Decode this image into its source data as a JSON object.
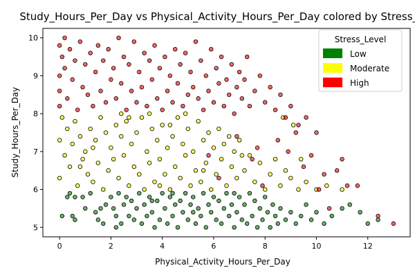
{
  "chart_data": {
    "type": "scatter",
    "title": "Study_Hours_Per_Day vs Physical_Activity_Hours_Per_Day colored by Stress_Level",
    "xlabel": "Physical_Activity_Hours_Per_Day",
    "ylabel": "Study_Hours_Per_Day",
    "xlim": [
      -0.65,
      13.65
    ],
    "ylim": [
      4.75,
      10.25
    ],
    "xticks": [
      0,
      2,
      4,
      6,
      8,
      10,
      12
    ],
    "yticks": [
      5,
      6,
      7,
      8,
      9,
      10
    ],
    "grid": false,
    "legend": {
      "title": "Stress_Level",
      "placement": "top-right",
      "entries": [
        {
          "label": "Low",
          "color": "#008000"
        },
        {
          "label": "Moderate",
          "color": "#ffff00"
        },
        {
          "label": "High",
          "color": "#ff0000"
        }
      ]
    },
    "series": [
      {
        "name": "Low",
        "color": "#008000",
        "points": [
          [
            0.1,
            5.3
          ],
          [
            0.3,
            5.8
          ],
          [
            0.4,
            5.9
          ],
          [
            0.5,
            5.3
          ],
          [
            0.6,
            5.8
          ],
          [
            0.6,
            5.2
          ],
          [
            0.9,
            5.8
          ],
          [
            1.0,
            5.5
          ],
          [
            1.2,
            5.9
          ],
          [
            1.4,
            5.4
          ],
          [
            1.6,
            5.5
          ],
          [
            1.7,
            5.1
          ],
          [
            1.8,
            5.6
          ],
          [
            2.0,
            5.8
          ],
          [
            2.1,
            5.5
          ],
          [
            2.2,
            5.3
          ],
          [
            2.3,
            5.9
          ],
          [
            2.4,
            5.1
          ],
          [
            2.5,
            5.6
          ],
          [
            2.6,
            5.8
          ],
          [
            2.7,
            5.3
          ],
          [
            2.8,
            5.7
          ],
          [
            2.9,
            5.2
          ],
          [
            3.0,
            5.5
          ],
          [
            3.1,
            5.9
          ],
          [
            3.2,
            5.1
          ],
          [
            3.3,
            5.6
          ],
          [
            3.4,
            5.3
          ],
          [
            3.5,
            5.8
          ],
          [
            3.6,
            5.4
          ],
          [
            3.7,
            5.0
          ],
          [
            3.8,
            5.7
          ],
          [
            3.9,
            5.2
          ],
          [
            4.0,
            5.9
          ],
          [
            4.1,
            5.5
          ],
          [
            4.2,
            5.1
          ],
          [
            4.3,
            5.8
          ],
          [
            4.4,
            5.3
          ],
          [
            4.5,
            5.6
          ],
          [
            4.6,
            5.0
          ],
          [
            4.7,
            5.7
          ],
          [
            4.8,
            5.4
          ],
          [
            4.9,
            5.9
          ],
          [
            5.0,
            5.2
          ],
          [
            5.1,
            5.6
          ],
          [
            5.2,
            5.8
          ],
          [
            5.3,
            5.1
          ],
          [
            5.4,
            5.5
          ],
          [
            5.5,
            5.3
          ],
          [
            5.6,
            5.9
          ],
          [
            5.7,
            5.0
          ],
          [
            5.8,
            5.6
          ],
          [
            5.9,
            5.4
          ],
          [
            6.0,
            5.8
          ],
          [
            6.1,
            5.2
          ],
          [
            6.2,
            5.7
          ],
          [
            6.3,
            5.1
          ],
          [
            6.4,
            5.5
          ],
          [
            6.5,
            5.9
          ],
          [
            6.6,
            5.3
          ],
          [
            6.7,
            5.6
          ],
          [
            6.8,
            5.0
          ],
          [
            6.9,
            5.4
          ],
          [
            7.0,
            5.8
          ],
          [
            7.1,
            5.2
          ],
          [
            7.2,
            5.6
          ],
          [
            7.3,
            5.1
          ],
          [
            7.4,
            5.9
          ],
          [
            7.5,
            5.3
          ],
          [
            7.6,
            5.7
          ],
          [
            7.7,
            5.0
          ],
          [
            7.8,
            5.5
          ],
          [
            7.9,
            5.2
          ],
          [
            8.0,
            5.8
          ],
          [
            8.1,
            5.4
          ],
          [
            8.2,
            5.0
          ],
          [
            8.3,
            5.6
          ],
          [
            8.4,
            5.3
          ],
          [
            8.5,
            5.1
          ],
          [
            8.6,
            5.5
          ],
          [
            8.8,
            5.2
          ],
          [
            9.0,
            5.4
          ],
          [
            9.2,
            5.1
          ],
          [
            9.4,
            5.3
          ],
          [
            9.6,
            5.6
          ],
          [
            9.8,
            5.2
          ],
          [
            10.0,
            5.4
          ],
          [
            10.3,
            5.1
          ],
          [
            10.6,
            5.3
          ],
          [
            11.0,
            5.5
          ],
          [
            11.3,
            5.6
          ],
          [
            11.7,
            5.4
          ],
          [
            12.0,
            5.1
          ],
          [
            12.4,
            5.2
          ],
          [
            3.6,
            5.7
          ],
          [
            4.4,
            5.9
          ],
          [
            5.2,
            5.4
          ],
          [
            6.8,
            5.9
          ],
          [
            2.2,
            5.0
          ],
          [
            1.5,
            5.2
          ]
        ]
      },
      {
        "name": "Moderate",
        "color": "#ffff00",
        "points": [
          [
            0.0,
            7.3
          ],
          [
            0.0,
            6.3
          ],
          [
            0.1,
            7.9
          ],
          [
            0.2,
            6.9
          ],
          [
            0.3,
            7.6
          ],
          [
            0.4,
            6.6
          ],
          [
            0.5,
            7.2
          ],
          [
            0.6,
            7.8
          ],
          [
            0.7,
            6.1
          ],
          [
            0.8,
            7.4
          ],
          [
            0.9,
            6.8
          ],
          [
            1.0,
            7.0
          ],
          [
            1.1,
            6.4
          ],
          [
            1.2,
            7.6
          ],
          [
            1.3,
            6.2
          ],
          [
            1.4,
            7.3
          ],
          [
            1.5,
            6.7
          ],
          [
            1.6,
            7.9
          ],
          [
            1.7,
            6.0
          ],
          [
            1.8,
            7.5
          ],
          [
            1.9,
            6.5
          ],
          [
            2.0,
            7.1
          ],
          [
            2.1,
            6.8
          ],
          [
            2.2,
            7.7
          ],
          [
            2.3,
            6.3
          ],
          [
            2.4,
            7.4
          ],
          [
            2.5,
            6.9
          ],
          [
            2.6,
            7.8
          ],
          [
            2.7,
            6.1
          ],
          [
            2.8,
            7.2
          ],
          [
            2.9,
            6.6
          ],
          [
            3.0,
            7.5
          ],
          [
            3.1,
            6.4
          ],
          [
            3.2,
            7.9
          ],
          [
            3.3,
            6.0
          ],
          [
            3.4,
            7.0
          ],
          [
            3.5,
            6.7
          ],
          [
            3.6,
            7.6
          ],
          [
            3.7,
            6.2
          ],
          [
            3.8,
            7.3
          ],
          [
            3.9,
            6.8
          ],
          [
            4.0,
            7.7
          ],
          [
            4.1,
            6.4
          ],
          [
            4.2,
            7.1
          ],
          [
            4.3,
            6.0
          ],
          [
            4.4,
            7.4
          ],
          [
            4.5,
            6.6
          ],
          [
            4.6,
            7.9
          ],
          [
            4.7,
            6.3
          ],
          [
            4.8,
            7.2
          ],
          [
            4.9,
            6.9
          ],
          [
            5.0,
            7.6
          ],
          [
            5.1,
            6.1
          ],
          [
            5.2,
            7.0
          ],
          [
            5.3,
            6.5
          ],
          [
            5.4,
            7.8
          ],
          [
            5.5,
            6.2
          ],
          [
            5.6,
            7.3
          ],
          [
            5.7,
            6.7
          ],
          [
            5.8,
            7.5
          ],
          [
            5.9,
            6.0
          ],
          [
            6.0,
            7.1
          ],
          [
            6.1,
            6.4
          ],
          [
            6.2,
            7.6
          ],
          [
            6.3,
            6.8
          ],
          [
            6.4,
            7.2
          ],
          [
            6.5,
            6.1
          ],
          [
            6.6,
            7.4
          ],
          [
            6.7,
            6.6
          ],
          [
            6.8,
            7.0
          ],
          [
            6.9,
            6.3
          ],
          [
            7.0,
            7.3
          ],
          [
            7.2,
            6.5
          ],
          [
            7.4,
            6.9
          ],
          [
            7.6,
            6.2
          ],
          [
            7.8,
            6.7
          ],
          [
            8.0,
            6.0
          ],
          [
            8.2,
            6.4
          ],
          [
            8.4,
            6.8
          ],
          [
            8.6,
            6.1
          ],
          [
            8.8,
            6.5
          ],
          [
            9.0,
            6.3
          ],
          [
            9.3,
            6.0
          ],
          [
            9.6,
            6.2
          ],
          [
            10.0,
            6.0
          ],
          [
            10.4,
            6.1
          ],
          [
            11.0,
            6.0
          ],
          [
            8.7,
            7.9
          ],
          [
            9.1,
            7.7
          ],
          [
            9.4,
            6.8
          ],
          [
            2.4,
            8.0
          ],
          [
            3.5,
            8.0
          ],
          [
            4.9,
            8.0
          ],
          [
            1.3,
            7.1
          ],
          [
            0.8,
            6.6
          ],
          [
            5.6,
            6.5
          ],
          [
            7.1,
            6.9
          ],
          [
            3.9,
            6.1
          ],
          [
            2.7,
            7.9
          ],
          [
            4.3,
            7.7
          ]
        ]
      },
      {
        "name": "High",
        "color": "#ff0000",
        "points": [
          [
            0.0,
            9.8
          ],
          [
            0.0,
            9.0
          ],
          [
            0.0,
            8.6
          ],
          [
            0.0,
            8.2
          ],
          [
            0.1,
            9.5
          ],
          [
            0.2,
            10.0
          ],
          [
            0.2,
            9.2
          ],
          [
            0.3,
            8.4
          ],
          [
            0.4,
            9.7
          ],
          [
            0.5,
            8.9
          ],
          [
            0.6,
            9.4
          ],
          [
            0.7,
            8.1
          ],
          [
            0.8,
            9.9
          ],
          [
            0.9,
            8.7
          ],
          [
            1.0,
            9.3
          ],
          [
            1.1,
            8.5
          ],
          [
            1.2,
            9.6
          ],
          [
            1.3,
            8.2
          ],
          [
            1.4,
            9.1
          ],
          [
            1.5,
            9.8
          ],
          [
            1.6,
            8.6
          ],
          [
            1.7,
            9.4
          ],
          [
            1.8,
            8.3
          ],
          [
            1.9,
            9.7
          ],
          [
            2.0,
            8.9
          ],
          [
            2.1,
            9.2
          ],
          [
            2.2,
            8.4
          ],
          [
            2.3,
            10.0
          ],
          [
            2.4,
            8.8
          ],
          [
            2.5,
            9.5
          ],
          [
            2.6,
            8.1
          ],
          [
            2.7,
            9.3
          ],
          [
            2.8,
            8.6
          ],
          [
            2.9,
            9.9
          ],
          [
            3.0,
            8.3
          ],
          [
            3.1,
            9.1
          ],
          [
            3.2,
            8.7
          ],
          [
            3.3,
            9.6
          ],
          [
            3.4,
            8.2
          ],
          [
            3.5,
            9.4
          ],
          [
            3.6,
            8.9
          ],
          [
            3.7,
            9.8
          ],
          [
            3.8,
            8.4
          ],
          [
            3.9,
            9.2
          ],
          [
            4.0,
            8.1
          ],
          [
            4.1,
            9.5
          ],
          [
            4.2,
            8.6
          ],
          [
            4.3,
            9.0
          ],
          [
            4.4,
            8.3
          ],
          [
            4.5,
            9.7
          ],
          [
            4.6,
            8.8
          ],
          [
            4.7,
            9.3
          ],
          [
            4.8,
            8.2
          ],
          [
            4.9,
            9.6
          ],
          [
            5.0,
            8.5
          ],
          [
            5.1,
            9.1
          ],
          [
            5.2,
            8.7
          ],
          [
            5.3,
            9.9
          ],
          [
            5.4,
            8.4
          ],
          [
            5.5,
            9.4
          ],
          [
            5.6,
            8.1
          ],
          [
            5.7,
            9.0
          ],
          [
            5.8,
            8.6
          ],
          [
            5.9,
            9.7
          ],
          [
            6.0,
            8.3
          ],
          [
            6.1,
            9.2
          ],
          [
            6.2,
            8.8
          ],
          [
            6.3,
            9.5
          ],
          [
            6.4,
            8.2
          ],
          [
            6.5,
            8.9
          ],
          [
            6.6,
            8.5
          ],
          [
            6.7,
            9.3
          ],
          [
            6.8,
            8.0
          ],
          [
            6.9,
            8.7
          ],
          [
            7.0,
            9.1
          ],
          [
            7.1,
            8.4
          ],
          [
            7.2,
            8.9
          ],
          [
            7.3,
            9.5
          ],
          [
            7.4,
            8.2
          ],
          [
            7.6,
            8.6
          ],
          [
            7.8,
            9.0
          ],
          [
            8.0,
            8.3
          ],
          [
            8.2,
            8.7
          ],
          [
            8.4,
            8.1
          ],
          [
            8.6,
            8.5
          ],
          [
            8.8,
            7.9
          ],
          [
            9.0,
            8.2
          ],
          [
            9.3,
            7.7
          ],
          [
            9.6,
            7.9
          ],
          [
            10.0,
            7.5
          ],
          [
            9.8,
            6.9
          ],
          [
            10.3,
            6.4
          ],
          [
            10.8,
            6.5
          ],
          [
            11.2,
            6.1
          ],
          [
            11.6,
            6.1
          ],
          [
            12.4,
            5.3
          ],
          [
            13.0,
            5.1
          ],
          [
            10.1,
            6.0
          ],
          [
            9.2,
            7.5
          ],
          [
            7.5,
            6.8
          ],
          [
            6.9,
            7.4
          ],
          [
            7.7,
            7.1
          ],
          [
            8.5,
            7.3
          ],
          [
            8.9,
            7.0
          ],
          [
            9.5,
            6.6
          ],
          [
            10.5,
            5.5
          ],
          [
            11.0,
            6.8
          ],
          [
            6.2,
            6.3
          ],
          [
            5.8,
            6.9
          ],
          [
            7.9,
            6.1
          ]
        ]
      }
    ]
  }
}
